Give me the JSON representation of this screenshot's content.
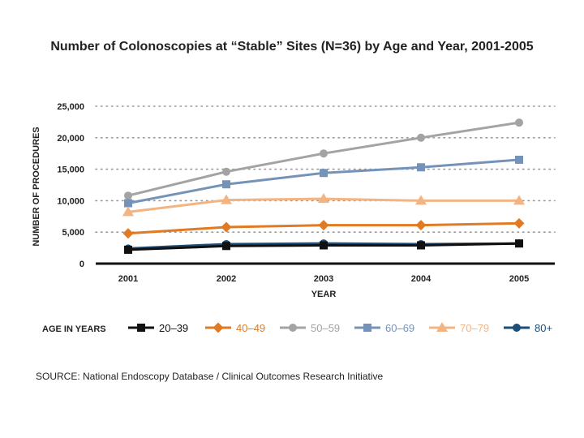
{
  "title": "Number of Colonoscopies at “Stable” Sites (N=36) by Age and Year, 2001-2005",
  "source": "SOURCE: National Endoscopy Database / Clinical Outcomes Research Initiative",
  "chart_data": {
    "type": "line",
    "title": "Number of Colonoscopies at “Stable” Sites (N=36) by Age and Year, 2001-2005",
    "xlabel": "YEAR",
    "ylabel": "NUMBER OF PROCEDURES",
    "categories": [
      "2001",
      "2002",
      "2003",
      "2004",
      "2005"
    ],
    "ylim": [
      0,
      25000
    ],
    "yticks": [
      0,
      5000,
      10000,
      15000,
      20000,
      25000
    ],
    "ytick_labels": [
      "0",
      "5,000",
      "10,000",
      "15,000",
      "20,000",
      "25,000"
    ],
    "grid": "horizontal dotted",
    "legend_title": "AGE IN YEARS",
    "legend_position": "bottom",
    "series": [
      {
        "name": "20–39",
        "color": "#111111",
        "marker": "square",
        "values": [
          2200,
          2800,
          2900,
          2900,
          3200
        ]
      },
      {
        "name": "40–49",
        "color": "#e07b24",
        "marker": "diamond",
        "values": [
          4800,
          5800,
          6100,
          6100,
          6400
        ]
      },
      {
        "name": "50–59",
        "color": "#a3a3a3",
        "marker": "circle",
        "values": [
          10800,
          14600,
          17500,
          20000,
          22400
        ]
      },
      {
        "name": "60–69",
        "color": "#7593b9",
        "marker": "square",
        "values": [
          9600,
          12600,
          14400,
          15300,
          16500
        ]
      },
      {
        "name": "70–79",
        "color": "#f4b482",
        "marker": "triangle",
        "values": [
          8200,
          10100,
          10300,
          10000,
          10000
        ]
      },
      {
        "name": "80+",
        "color": "#1d4e78",
        "marker": "circle",
        "values": [
          2400,
          3100,
          3200,
          3100,
          3200
        ]
      }
    ]
  }
}
